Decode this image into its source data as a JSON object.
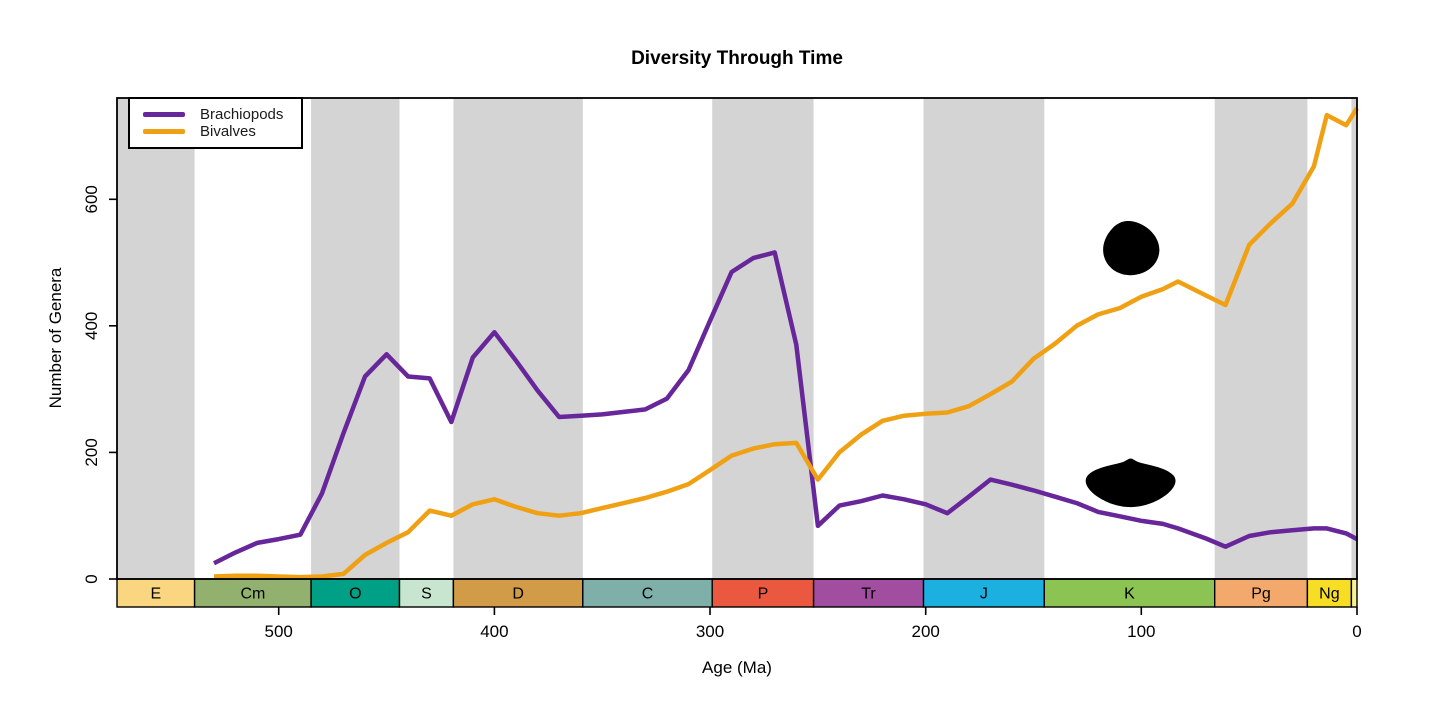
{
  "colors": {
    "background": "#ffffff",
    "stripe_gray": "#d4d4d4",
    "axis": "#000000",
    "brachiopods": "#67279a",
    "bivalves": "#f0a013"
  },
  "legend": {
    "items": [
      {
        "label": "Brachiopods",
        "color": "#67279a"
      },
      {
        "label": "Bivalves",
        "color": "#f0a013"
      }
    ]
  },
  "chart_data": {
    "type": "line",
    "title": "Diversity Through Time",
    "xlabel": "Age (Ma)",
    "ylabel": "Number of Genera",
    "x_axis_reversed": true,
    "xlim": [
      575,
      0
    ],
    "ylim": [
      0,
      760
    ],
    "x_ticks": [
      500,
      400,
      300,
      200,
      100,
      0
    ],
    "y_ticks": [
      0,
      200,
      400,
      600
    ],
    "grid": false,
    "legend_position": "top-left",
    "x": [
      530,
      520,
      510,
      500,
      490,
      480,
      470,
      460,
      450,
      440,
      430,
      420,
      410,
      400,
      390,
      380,
      370,
      360,
      350,
      340,
      330,
      320,
      310,
      300,
      290,
      280,
      270,
      260,
      250,
      240,
      230,
      220,
      210,
      200,
      190,
      180,
      170,
      160,
      150,
      140,
      130,
      120,
      110,
      100,
      90,
      83,
      70,
      61,
      50,
      40,
      30,
      20,
      14,
      5,
      0
    ],
    "series": [
      {
        "name": "Brachiopods",
        "color": "#67279a",
        "values": [
          25,
          42,
          57,
          63,
          70,
          135,
          230,
          320,
          355,
          320,
          317,
          248,
          350,
          390,
          345,
          298,
          256,
          258,
          260,
          264,
          268,
          285,
          330,
          408,
          485,
          507,
          516,
          370,
          84,
          116,
          123,
          132,
          126,
          118,
          104,
          130,
          157,
          149,
          140,
          130,
          120,
          106,
          99,
          92,
          87,
          80,
          64,
          51,
          68,
          74,
          77,
          80,
          80,
          72,
          63
        ]
      },
      {
        "name": "Bivalves",
        "color": "#f0a013",
        "values": [
          4,
          5,
          5,
          4,
          3,
          4,
          8,
          38,
          57,
          74,
          108,
          100,
          118,
          126,
          114,
          104,
          100,
          104,
          112,
          120,
          128,
          138,
          150,
          172,
          195,
          206,
          213,
          215,
          157,
          200,
          228,
          250,
          258,
          261,
          263,
          273,
          292,
          312,
          348,
          372,
          400,
          418,
          428,
          446,
          458,
          470,
          448,
          433,
          528,
          562,
          593,
          652,
          733,
          717,
          744
        ]
      }
    ],
    "geologic_periods": [
      {
        "key": "E",
        "label": "E",
        "from": 575,
        "to": 539,
        "color": "#fbd681",
        "gray_band": true
      },
      {
        "key": "Cm",
        "label": "Cm",
        "from": 539,
        "to": 485,
        "color": "#92b06e",
        "gray_band": false
      },
      {
        "key": "O",
        "label": "O",
        "from": 485,
        "to": 444,
        "color": "#00a087",
        "gray_band": true
      },
      {
        "key": "S",
        "label": "S",
        "from": 444,
        "to": 419,
        "color": "#c8e6cf",
        "gray_band": false
      },
      {
        "key": "D",
        "label": "D",
        "from": 419,
        "to": 359,
        "color": "#d29b47",
        "gray_band": true
      },
      {
        "key": "C",
        "label": "C",
        "from": 359,
        "to": 299,
        "color": "#7eafa9",
        "gray_band": false
      },
      {
        "key": "P",
        "label": "P",
        "from": 299,
        "to": 252,
        "color": "#ea5840",
        "gray_band": true
      },
      {
        "key": "Tr",
        "label": "Tr",
        "from": 252,
        "to": 201,
        "color": "#a14ea0",
        "gray_band": false
      },
      {
        "key": "J",
        "label": "J",
        "from": 201,
        "to": 145,
        "color": "#1cb0e0",
        "gray_band": true
      },
      {
        "key": "K",
        "label": "K",
        "from": 145,
        "to": 66,
        "color": "#8cc453",
        "gray_band": false
      },
      {
        "key": "Pg",
        "label": "Pg",
        "from": 66,
        "to": 23,
        "color": "#f3a96c",
        "gray_band": true
      },
      {
        "key": "Ng",
        "label": "Ng",
        "from": 23,
        "to": 2.6,
        "color": "#f8dd25",
        "gray_band": false
      },
      {
        "key": "Q",
        "label": "",
        "from": 2.6,
        "to": 0,
        "color": "#f7f297",
        "gray_band": true
      }
    ],
    "annotations": [
      {
        "name": "bivalve-silhouette",
        "age": 105,
        "value": 517,
        "width": 72,
        "height": 66
      },
      {
        "name": "brachiopod-silhouette",
        "age": 105,
        "value": 152,
        "width": 94,
        "height": 52
      }
    ]
  }
}
